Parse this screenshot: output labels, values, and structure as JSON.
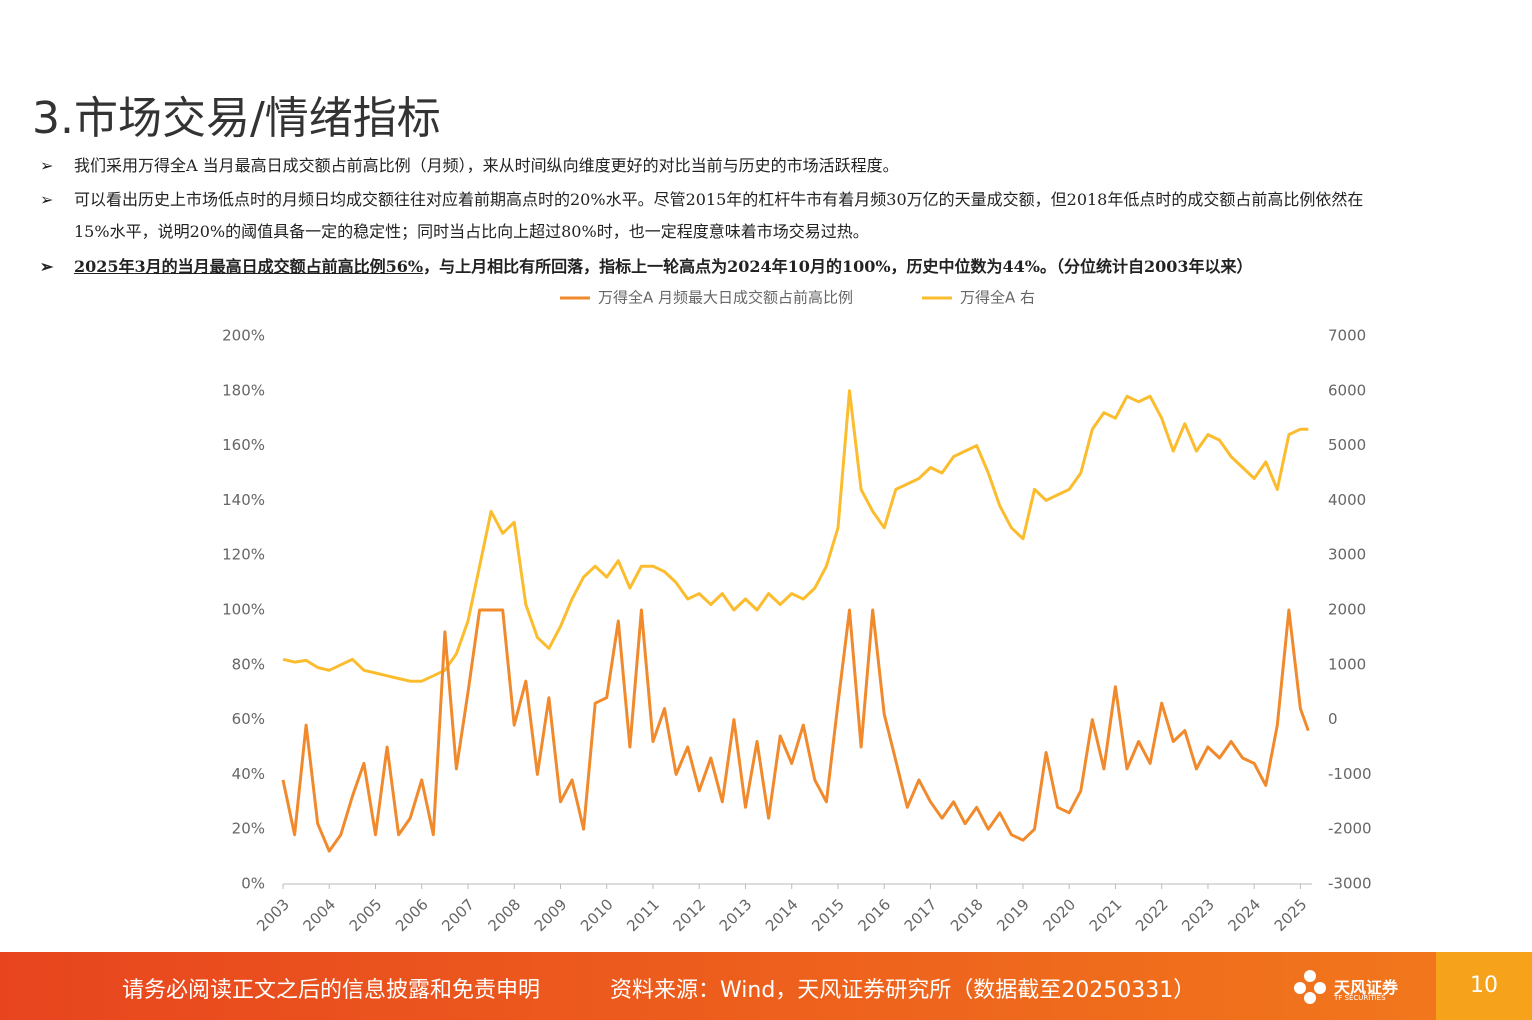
{
  "header": {
    "title": "3.市场交易/情绪指标"
  },
  "bullets": [
    {
      "text": "我们采用万得全A 当月最高日成交额占前高比例（月频），来从时间纵向维度更好的对比当前与历史的市场活跃程度。"
    },
    {
      "text": "可以看出历史上市场低点时的月频日均成交额往往对应着前期高点时的20%水平。尽管2015年的杠杆牛市有着月频30万亿的天量成交额，但2018年低点时的成交额占前高比例依然在15%水平，说明20%的阈值具备一定的稳定性；同时当占比向上超过80%时，也一定程度意味着市场交易过热。"
    },
    {
      "highlight": "2025年3月的当月最高日成交额占前高比例56%",
      "text": "，与上月相比有所回落，指标上一轮高点为2024年10月的100%，历史中位数为44%。（分位统计自2003年以来）"
    }
  ],
  "chart_data": {
    "type": "line",
    "x": [
      2003,
      2003.25,
      2003.5,
      2003.75,
      2004,
      2004.25,
      2004.5,
      2004.75,
      2005,
      2005.25,
      2005.5,
      2005.75,
      2006,
      2006.25,
      2006.5,
      2006.75,
      2007,
      2007.25,
      2007.5,
      2007.75,
      2008,
      2008.25,
      2008.5,
      2008.75,
      2009,
      2009.25,
      2009.5,
      2009.75,
      2010,
      2010.25,
      2010.5,
      2010.75,
      2011,
      2011.25,
      2011.5,
      2011.75,
      2012,
      2012.25,
      2012.5,
      2012.75,
      2013,
      2013.25,
      2013.5,
      2013.75,
      2014,
      2014.25,
      2014.5,
      2014.75,
      2015,
      2015.25,
      2015.5,
      2015.75,
      2016,
      2016.25,
      2016.5,
      2016.75,
      2017,
      2017.25,
      2017.5,
      2017.75,
      2018,
      2018.25,
      2018.5,
      2018.75,
      2019,
      2019.25,
      2019.5,
      2019.75,
      2020,
      2020.25,
      2020.5,
      2020.75,
      2021,
      2021.25,
      2021.5,
      2021.75,
      2022,
      2022.25,
      2022.5,
      2022.75,
      2023,
      2023.25,
      2023.5,
      2023.75,
      2024,
      2024.25,
      2024.5,
      2024.75,
      2025,
      2025.17
    ],
    "xlim": [
      2003,
      2025.25
    ],
    "xticks": [
      2003,
      2004,
      2005,
      2006,
      2007,
      2008,
      2009,
      2010,
      2011,
      2012,
      2013,
      2014,
      2015,
      2016,
      2017,
      2018,
      2019,
      2020,
      2021,
      2022,
      2023,
      2024,
      2025
    ],
    "ylim": [
      0,
      200
    ],
    "yticks": [
      {
        "value": 0,
        "label": "0%"
      },
      {
        "value": 20,
        "label": "20%"
      },
      {
        "value": 40,
        "label": "40%"
      },
      {
        "value": 60,
        "label": "60%"
      },
      {
        "value": 80,
        "label": "80%"
      },
      {
        "value": 100,
        "label": "100%"
      },
      {
        "value": 120,
        "label": "120%"
      },
      {
        "value": 140,
        "label": "140%"
      },
      {
        "value": 160,
        "label": "160%"
      },
      {
        "value": 180,
        "label": "180%"
      },
      {
        "value": 200,
        "label": "200%"
      }
    ],
    "y2lim": [
      -3000,
      7000
    ],
    "y2ticks": [
      -3000,
      -2000,
      -1000,
      0,
      1000,
      2000,
      3000,
      4000,
      5000,
      6000,
      7000
    ],
    "series": [
      {
        "name": "万得全A 月频最大日成交额占前高比例",
        "color": "#f08a2c",
        "values": [
          38,
          18,
          58,
          22,
          12,
          18,
          32,
          44,
          18,
          50,
          18,
          24,
          38,
          18,
          92,
          42,
          70,
          100,
          100,
          100,
          58,
          74,
          40,
          68,
          30,
          38,
          20,
          66,
          68,
          96,
          50,
          100,
          52,
          64,
          40,
          50,
          34,
          46,
          30,
          60,
          28,
          52,
          24,
          54,
          44,
          58,
          38,
          30,
          66,
          100,
          50,
          100,
          62,
          45,
          28,
          38,
          30,
          24,
          30,
          22,
          28,
          20,
          26,
          18,
          16,
          20,
          48,
          28,
          26,
          34,
          60,
          42,
          72,
          42,
          52,
          44,
          66,
          52,
          56,
          42,
          50,
          46,
          52,
          46,
          44,
          36,
          58,
          100,
          64,
          56
        ]
      },
      {
        "name": "万得全A 右",
        "color": "#fbbd2e",
        "axis": "y2",
        "values": [
          1100,
          1050,
          1080,
          950,
          900,
          1000,
          1100,
          900,
          850,
          800,
          750,
          700,
          700,
          800,
          900,
          1200,
          1800,
          2800,
          3800,
          3400,
          3600,
          2100,
          1500,
          1300,
          1700,
          2200,
          2600,
          2800,
          2600,
          2900,
          2400,
          2800,
          2800,
          2700,
          2500,
          2200,
          2300,
          2100,
          2300,
          2000,
          2200,
          2000,
          2300,
          2100,
          2300,
          2200,
          2400,
          2800,
          3500,
          6000,
          4200,
          3800,
          3500,
          4200,
          4300,
          4400,
          4600,
          4500,
          4800,
          4900,
          5000,
          4500,
          3900,
          3500,
          3300,
          4200,
          4000,
          4100,
          4200,
          4500,
          5300,
          5600,
          5500,
          5900,
          5800,
          5900,
          5500,
          4900,
          5400,
          4900,
          5200,
          5100,
          4800,
          4600,
          4400,
          4700,
          4200,
          5200,
          5300,
          5300
        ]
      }
    ]
  },
  "footer": {
    "disclaimer": "请务必阅读正文之后的信息披露和免责申明",
    "source": "资料来源：Wind，天风证券研究所（数据截至20250331）",
    "logo": "天风证券",
    "logo_sub": "TF SECURITIES",
    "page": "10"
  }
}
